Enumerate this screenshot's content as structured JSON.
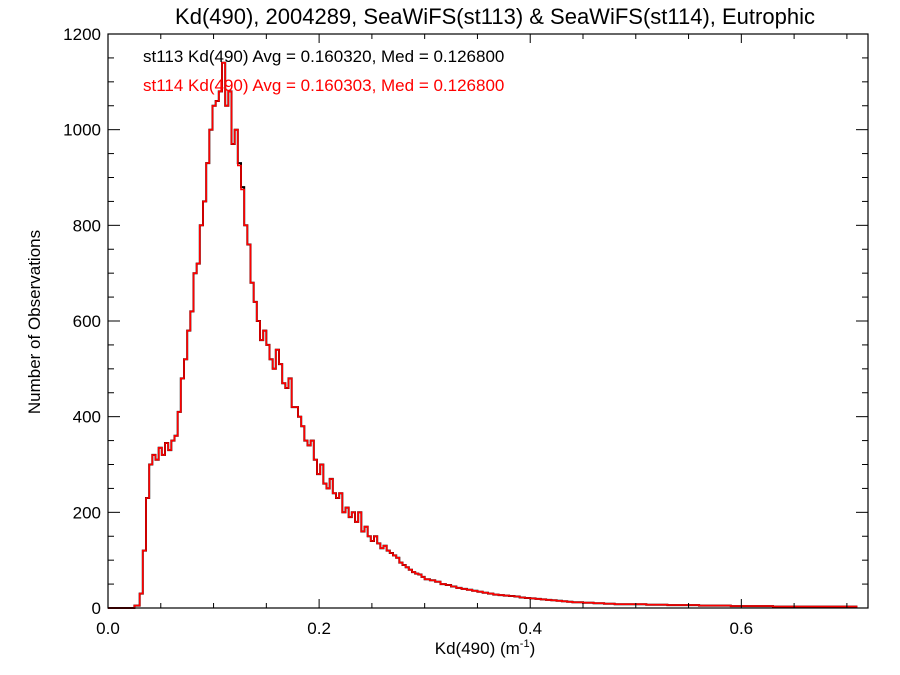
{
  "chart_data": {
    "type": "histogram",
    "title": "Kd(490), 2004289, SeaWiFS(st113) & SeaWiFS(st114), Eutrophic",
    "xlabel": "Kd(490) (m",
    "xlabel_sup": "-1",
    "xlabel_close": ")",
    "ylabel": "Number of Observations",
    "xlim": [
      0.0,
      0.72
    ],
    "ylim": [
      0,
      1200
    ],
    "x_ticks": [
      0.0,
      0.2,
      0.4,
      0.6
    ],
    "x_tick_labels": [
      "0.0",
      "0.2",
      "0.4",
      "0.6"
    ],
    "y_ticks": [
      0,
      200,
      400,
      600,
      800,
      1000,
      1200
    ],
    "y_tick_labels": [
      "0",
      "200",
      "400",
      "600",
      "800",
      "1000",
      "1200"
    ],
    "grid": false,
    "annotations": [
      {
        "text": "st113 Kd(490) Avg = 0.160320, Med = 0.126800",
        "color": "#000000"
      },
      {
        "text": "st114 Kd(490) Avg = 0.160303, Med = 0.126800",
        "color": "#ff0000"
      }
    ],
    "series": [
      {
        "color": "#000000",
        "x": [
          0.0,
          0.01,
          0.02,
          0.025,
          0.03,
          0.033,
          0.036,
          0.039,
          0.042,
          0.045,
          0.048,
          0.051,
          0.054,
          0.057,
          0.06,
          0.063,
          0.066,
          0.069,
          0.072,
          0.075,
          0.078,
          0.081,
          0.084,
          0.087,
          0.09,
          0.093,
          0.096,
          0.099,
          0.102,
          0.105,
          0.108,
          0.111,
          0.114,
          0.117,
          0.12,
          0.123,
          0.126,
          0.129,
          0.132,
          0.135,
          0.138,
          0.141,
          0.144,
          0.147,
          0.15,
          0.153,
          0.156,
          0.159,
          0.162,
          0.165,
          0.168,
          0.171,
          0.174,
          0.177,
          0.18,
          0.183,
          0.186,
          0.189,
          0.192,
          0.195,
          0.198,
          0.201,
          0.204,
          0.207,
          0.21,
          0.213,
          0.216,
          0.219,
          0.222,
          0.225,
          0.228,
          0.231,
          0.234,
          0.237,
          0.24,
          0.243,
          0.246,
          0.249,
          0.252,
          0.255,
          0.258,
          0.261,
          0.264,
          0.267,
          0.27,
          0.273,
          0.276,
          0.279,
          0.282,
          0.285,
          0.288,
          0.291,
          0.294,
          0.297,
          0.3,
          0.305,
          0.31,
          0.315,
          0.32,
          0.325,
          0.33,
          0.335,
          0.34,
          0.345,
          0.35,
          0.355,
          0.36,
          0.365,
          0.37,
          0.375,
          0.38,
          0.385,
          0.39,
          0.395,
          0.4,
          0.405,
          0.41,
          0.415,
          0.42,
          0.425,
          0.43,
          0.435,
          0.44,
          0.445,
          0.45,
          0.455,
          0.46,
          0.465,
          0.47,
          0.475,
          0.48,
          0.49,
          0.5,
          0.51,
          0.52,
          0.53,
          0.54,
          0.55,
          0.56,
          0.57,
          0.58,
          0.59,
          0.6,
          0.61,
          0.62,
          0.63,
          0.64,
          0.65,
          0.66,
          0.67,
          0.68,
          0.69,
          0.7,
          0.71
        ],
        "y": [
          0,
          0,
          0,
          5,
          30,
          120,
          230,
          300,
          320,
          310,
          335,
          320,
          345,
          330,
          350,
          360,
          410,
          480,
          520,
          580,
          620,
          700,
          720,
          800,
          850,
          930,
          1000,
          1050,
          1060,
          1080,
          1140,
          1050,
          1080,
          970,
          1000,
          930,
          880,
          800,
          760,
          680,
          640,
          600,
          560,
          580,
          550,
          520,
          500,
          540,
          510,
          470,
          460,
          480,
          420,
          420,
          400,
          380,
          350,
          340,
          350,
          310,
          280,
          300,
          260,
          250,
          270,
          240,
          230,
          240,
          200,
          210,
          190,
          200,
          180,
          200,
          160,
          170,
          150,
          140,
          150,
          135,
          125,
          130,
          120,
          115,
          110,
          105,
          95,
          90,
          85,
          80,
          75,
          72,
          70,
          65,
          60,
          58,
          55,
          50,
          48,
          45,
          42,
          40,
          38,
          36,
          34,
          32,
          30,
          28,
          27,
          26,
          25,
          24,
          22,
          21,
          20,
          19,
          18,
          17,
          16,
          15,
          14,
          13,
          12,
          12,
          11,
          11,
          10,
          10,
          9,
          9,
          8,
          8,
          8,
          7,
          7,
          6,
          6,
          6,
          5,
          5,
          5,
          4,
          4,
          4,
          4,
          3,
          3,
          3,
          3,
          3,
          3,
          3,
          3
        ]
      },
      {
        "color": "#ff0000",
        "x": [
          0.0,
          0.01,
          0.02,
          0.025,
          0.03,
          0.033,
          0.036,
          0.039,
          0.042,
          0.045,
          0.048,
          0.051,
          0.054,
          0.057,
          0.06,
          0.063,
          0.066,
          0.069,
          0.072,
          0.075,
          0.078,
          0.081,
          0.084,
          0.087,
          0.09,
          0.093,
          0.096,
          0.099,
          0.102,
          0.105,
          0.108,
          0.111,
          0.114,
          0.117,
          0.12,
          0.123,
          0.126,
          0.129,
          0.132,
          0.135,
          0.138,
          0.141,
          0.144,
          0.147,
          0.15,
          0.153,
          0.156,
          0.159,
          0.162,
          0.165,
          0.168,
          0.171,
          0.174,
          0.177,
          0.18,
          0.183,
          0.186,
          0.189,
          0.192,
          0.195,
          0.198,
          0.201,
          0.204,
          0.207,
          0.21,
          0.213,
          0.216,
          0.219,
          0.222,
          0.225,
          0.228,
          0.231,
          0.234,
          0.237,
          0.24,
          0.243,
          0.246,
          0.249,
          0.252,
          0.255,
          0.258,
          0.261,
          0.264,
          0.267,
          0.27,
          0.273,
          0.276,
          0.279,
          0.282,
          0.285,
          0.288,
          0.291,
          0.294,
          0.297,
          0.3,
          0.305,
          0.31,
          0.315,
          0.32,
          0.325,
          0.33,
          0.335,
          0.34,
          0.345,
          0.35,
          0.355,
          0.36,
          0.365,
          0.37,
          0.375,
          0.38,
          0.385,
          0.39,
          0.395,
          0.4,
          0.405,
          0.41,
          0.415,
          0.42,
          0.425,
          0.43,
          0.435,
          0.44,
          0.445,
          0.45,
          0.455,
          0.46,
          0.465,
          0.47,
          0.475,
          0.48,
          0.49,
          0.5,
          0.51,
          0.52,
          0.53,
          0.54,
          0.55,
          0.56,
          0.57,
          0.58,
          0.59,
          0.6,
          0.61,
          0.62,
          0.63,
          0.64,
          0.65,
          0.66,
          0.67,
          0.68,
          0.69,
          0.7,
          0.71
        ],
        "y": [
          0,
          0,
          0,
          5,
          30,
          120,
          230,
          300,
          320,
          310,
          335,
          320,
          345,
          330,
          350,
          360,
          410,
          480,
          520,
          580,
          620,
          700,
          720,
          800,
          850,
          930,
          1000,
          1050,
          1060,
          1080,
          1140,
          1050,
          1080,
          970,
          1000,
          925,
          875,
          800,
          760,
          680,
          640,
          600,
          560,
          580,
          550,
          520,
          500,
          540,
          510,
          470,
          460,
          480,
          420,
          420,
          400,
          380,
          350,
          340,
          350,
          310,
          280,
          300,
          260,
          250,
          270,
          240,
          230,
          240,
          200,
          210,
          190,
          200,
          180,
          200,
          160,
          170,
          150,
          140,
          150,
          135,
          125,
          130,
          120,
          115,
          110,
          105,
          95,
          90,
          85,
          80,
          75,
          72,
          70,
          65,
          60,
          58,
          55,
          50,
          48,
          45,
          42,
          40,
          38,
          36,
          34,
          32,
          30,
          28,
          27,
          26,
          25,
          24,
          22,
          21,
          20,
          19,
          18,
          17,
          16,
          15,
          14,
          13,
          12,
          12,
          11,
          11,
          10,
          10,
          9,
          9,
          8,
          8,
          8,
          7,
          7,
          6,
          6,
          6,
          5,
          5,
          5,
          4,
          4,
          4,
          4,
          3,
          3,
          3,
          3,
          3,
          3,
          3,
          3
        ]
      }
    ]
  }
}
